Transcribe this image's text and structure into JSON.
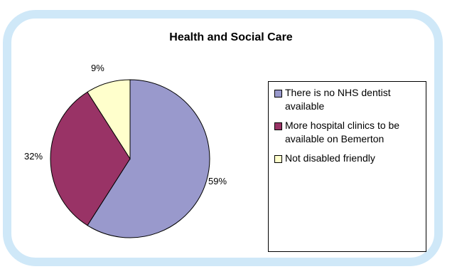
{
  "chart_data": {
    "type": "pie",
    "title": "Health and Social Care",
    "slices": [
      {
        "label": "There is no NHS dentist available",
        "value": 59,
        "pct_label": "59%",
        "color": "#9999cc"
      },
      {
        "label": "More hospital clinics to be available on Bemerton",
        "value": 32,
        "pct_label": "32%",
        "color": "#993366"
      },
      {
        "label": "Not disabled friendly",
        "value": 9,
        "pct_label": "9%",
        "color": "#ffffcc"
      }
    ],
    "legend_position": "right"
  },
  "colors": {
    "frame": "#cfe8f8",
    "outline": "#000000"
  }
}
